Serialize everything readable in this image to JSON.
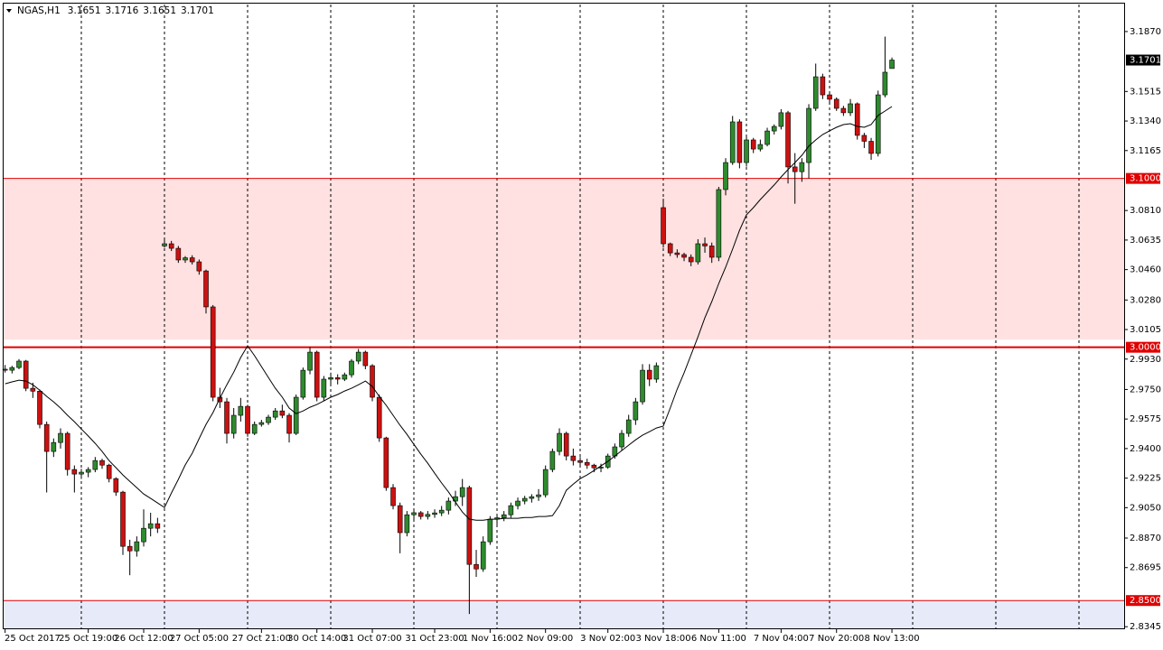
{
  "chart_data": {
    "type": "candlestick",
    "title": "NGAS,H1",
    "categories": [
      "25 Oct 2017",
      null,
      null,
      null,
      null,
      null,
      null,
      null,
      null,
      null,
      null,
      null,
      "25 Oct 19:00",
      null,
      null,
      null,
      null,
      null,
      null,
      null,
      "26 Oct 12:00",
      null,
      null,
      null,
      null,
      null,
      null,
      null,
      "27 Oct 05:00",
      null,
      null,
      null,
      null,
      null,
      null,
      null,
      null,
      "27 Oct 21:00",
      null,
      null,
      null,
      null,
      null,
      null,
      null,
      "30 Oct 14:00",
      null,
      null,
      null,
      null,
      null,
      null,
      null,
      "31 Oct 07:00",
      null,
      null,
      null,
      null,
      null,
      null,
      null,
      null,
      "31 Oct 23:00",
      null,
      null,
      null,
      null,
      null,
      null,
      null,
      "1 Nov 16:00",
      null,
      null,
      null,
      null,
      null,
      null,
      null,
      "2 Nov 09:00",
      null,
      null,
      null,
      null,
      null,
      null,
      null,
      null,
      "3 Nov 02:00",
      null,
      null,
      null,
      null,
      null,
      null,
      null,
      "3 Nov 18:00",
      null,
      null,
      null,
      null,
      null,
      null,
      null,
      "6 Nov 11:00",
      null,
      null,
      null,
      null,
      null,
      null,
      null,
      null,
      "7 Nov 04:00",
      null,
      null,
      null,
      null,
      null,
      null,
      null,
      "7 Nov 20:00",
      null,
      null,
      null,
      null,
      null,
      null,
      null,
      "8 Nov 13:00"
    ],
    "ohlc": [
      [
        2.987,
        2.9895,
        2.985,
        2.9864
      ],
      [
        2.9864,
        2.989,
        2.9845,
        2.988
      ],
      [
        2.988,
        2.993,
        2.987,
        2.9918
      ],
      [
        2.9918,
        2.9925,
        2.974,
        2.9757
      ],
      [
        2.9757,
        2.979,
        2.97,
        2.974
      ],
      [
        2.974,
        2.975,
        2.952,
        2.9543
      ],
      [
        2.9543,
        2.956,
        2.914,
        2.9383
      ],
      [
        2.9383,
        2.946,
        2.935,
        2.9436
      ],
      [
        2.9436,
        2.952,
        2.94,
        2.949
      ],
      [
        2.949,
        2.95,
        2.924,
        2.9276
      ],
      [
        2.9276,
        2.93,
        2.914,
        2.9249
      ],
      [
        2.9249,
        2.928,
        2.922,
        2.926
      ],
      [
        2.926,
        2.929,
        2.923,
        2.9276
      ],
      [
        2.9276,
        2.935,
        2.926,
        2.9329
      ],
      [
        2.9329,
        2.934,
        2.928,
        2.9302
      ],
      [
        2.9302,
        2.931,
        2.92,
        2.9222
      ],
      [
        2.9222,
        2.923,
        2.912,
        2.9142
      ],
      [
        2.9142,
        2.915,
        2.877,
        2.8821
      ],
      [
        2.8821,
        2.886,
        2.865,
        2.8794
      ],
      [
        2.8794,
        2.888,
        2.876,
        2.8848
      ],
      [
        2.8848,
        2.904,
        2.882,
        2.8928
      ],
      [
        2.8928,
        2.902,
        2.888,
        2.8955
      ],
      [
        2.8955,
        2.899,
        2.89,
        2.8928
      ],
      [
        3.06,
        3.064,
        3.059,
        3.0613
      ],
      [
        3.0613,
        3.063,
        3.057,
        3.0586
      ],
      [
        3.0586,
        3.06,
        3.05,
        3.0517
      ],
      [
        3.0517,
        3.054,
        3.05,
        3.053
      ],
      [
        3.053,
        3.0545,
        3.049,
        3.0506
      ],
      [
        3.0506,
        3.052,
        3.043,
        3.0452
      ],
      [
        3.0452,
        3.046,
        3.02,
        3.0239
      ],
      [
        3.0239,
        3.025,
        2.968,
        2.9704
      ],
      [
        2.9704,
        2.976,
        2.964,
        2.9677
      ],
      [
        2.9677,
        2.97,
        2.943,
        2.949
      ],
      [
        2.949,
        2.964,
        2.946,
        2.9597
      ],
      [
        2.9597,
        2.97,
        2.956,
        2.965
      ],
      [
        2.965,
        2.966,
        2.947,
        2.949
      ],
      [
        2.949,
        2.956,
        2.948,
        2.9543
      ],
      [
        2.9543,
        2.957,
        2.953,
        2.9554
      ],
      [
        2.9554,
        2.96,
        2.954,
        2.9586
      ],
      [
        2.9586,
        2.964,
        2.957,
        2.9623
      ],
      [
        2.9623,
        2.966,
        2.958,
        2.9597
      ],
      [
        2.9597,
        2.961,
        2.9436,
        2.949
      ],
      [
        2.949,
        2.972,
        2.948,
        2.9704
      ],
      [
        2.9704,
        2.988,
        2.969,
        2.9864
      ],
      [
        2.9864,
        3.0,
        2.984,
        2.9971
      ],
      [
        2.9971,
        2.998,
        2.968,
        2.9704
      ],
      [
        2.9704,
        2.983,
        2.968,
        2.9811
      ],
      [
        2.9811,
        2.985,
        2.978,
        2.982
      ],
      [
        2.982,
        2.984,
        2.978,
        2.9811
      ],
      [
        2.9811,
        2.985,
        2.98,
        2.9837
      ],
      [
        2.9837,
        2.993,
        2.982,
        2.9918
      ],
      [
        2.9918,
        2.999,
        2.99,
        2.9971
      ],
      [
        2.9971,
        2.998,
        2.987,
        2.9891
      ],
      [
        2.9891,
        2.99,
        2.968,
        2.9704
      ],
      [
        2.9704,
        2.972,
        2.944,
        2.9463
      ],
      [
        2.9463,
        2.947,
        2.915,
        2.9169
      ],
      [
        2.9169,
        2.919,
        2.904,
        2.9062
      ],
      [
        2.9062,
        2.908,
        2.878,
        2.8902
      ],
      [
        2.8902,
        2.903,
        2.888,
        2.9008
      ],
      [
        2.9008,
        2.904,
        2.898,
        2.902
      ],
      [
        2.902,
        2.903,
        2.898,
        2.8998
      ],
      [
        2.8998,
        2.903,
        2.898,
        2.901
      ],
      [
        2.901,
        2.904,
        2.899,
        2.9019
      ],
      [
        2.9019,
        2.906,
        2.9,
        2.9035
      ],
      [
        2.9035,
        2.911,
        2.901,
        2.9089
      ],
      [
        2.9089,
        2.915,
        2.906,
        2.9115
      ],
      [
        2.9115,
        2.922,
        2.906,
        2.9169
      ],
      [
        2.9169,
        2.918,
        2.842,
        2.8714
      ],
      [
        2.8714,
        2.88,
        2.864,
        2.8687
      ],
      [
        2.8687,
        2.888,
        2.867,
        2.8848
      ],
      [
        2.8848,
        2.9,
        2.883,
        2.8982
      ],
      [
        2.8982,
        2.9,
        2.895,
        2.899
      ],
      [
        2.899,
        2.903,
        2.897,
        2.9008
      ],
      [
        2.9008,
        2.908,
        2.899,
        2.9062
      ],
      [
        2.9062,
        2.911,
        2.904,
        2.9089
      ],
      [
        2.9089,
        2.912,
        2.907,
        2.9105
      ],
      [
        2.9105,
        2.913,
        2.908,
        2.9115
      ],
      [
        2.9115,
        2.916,
        2.909,
        2.9126
      ],
      [
        2.9126,
        2.93,
        2.911,
        2.9276
      ],
      [
        2.9276,
        2.94,
        2.926,
        2.9383
      ],
      [
        2.9383,
        2.952,
        2.936,
        2.949
      ],
      [
        2.949,
        2.95,
        2.933,
        2.9356
      ],
      [
        2.9356,
        2.94,
        2.93,
        2.9329
      ],
      [
        2.9329,
        2.935,
        2.929,
        2.9318
      ],
      [
        2.9318,
        2.934,
        2.928,
        2.9302
      ],
      [
        2.9302,
        2.931,
        2.926,
        2.9286
      ],
      [
        2.9286,
        2.931,
        2.926,
        2.929
      ],
      [
        2.929,
        2.937,
        2.928,
        2.9356
      ],
      [
        2.9356,
        2.943,
        2.934,
        2.941
      ],
      [
        2.941,
        2.951,
        2.939,
        2.949
      ],
      [
        2.949,
        2.96,
        2.947,
        2.957
      ],
      [
        2.957,
        2.97,
        2.954,
        2.9677
      ],
      [
        2.9677,
        2.99,
        2.966,
        2.9864
      ],
      [
        2.9864,
        2.99,
        2.977,
        2.9811
      ],
      [
        2.9811,
        2.991,
        2.979,
        2.9891
      ],
      [
        3.0827,
        3.088,
        3.059,
        3.0613
      ],
      [
        3.0613,
        3.062,
        3.054,
        3.0559
      ],
      [
        3.0559,
        3.058,
        3.053,
        3.0549
      ],
      [
        3.0549,
        3.056,
        3.051,
        3.0533
      ],
      [
        3.0533,
        3.055,
        3.048,
        3.0506
      ],
      [
        3.0506,
        3.064,
        3.049,
        3.0613
      ],
      [
        3.0613,
        3.065,
        3.056,
        3.06
      ],
      [
        3.06,
        3.062,
        3.05,
        3.0533
      ],
      [
        3.0533,
        3.095,
        3.051,
        3.0934
      ],
      [
        3.0934,
        3.112,
        3.09,
        3.1094
      ],
      [
        3.1094,
        3.137,
        3.108,
        3.1335
      ],
      [
        3.1335,
        3.135,
        3.106,
        3.1094
      ],
      [
        3.1094,
        3.125,
        3.107,
        3.1228
      ],
      [
        3.1228,
        3.124,
        3.115,
        3.1174
      ],
      [
        3.1174,
        3.123,
        3.116,
        3.1201
      ],
      [
        3.1201,
        3.13,
        3.119,
        3.1281
      ],
      [
        3.1281,
        3.132,
        3.126,
        3.1308
      ],
      [
        3.1308,
        3.141,
        3.129,
        3.1389
      ],
      [
        3.1389,
        3.14,
        3.097,
        3.1068
      ],
      [
        3.1068,
        3.115,
        3.085,
        3.104
      ],
      [
        3.104,
        3.112,
        3.098,
        3.1094
      ],
      [
        3.1094,
        3.144,
        3.1,
        3.1415
      ],
      [
        3.1415,
        3.168,
        3.14,
        3.1602
      ],
      [
        3.1602,
        3.162,
        3.147,
        3.1495
      ],
      [
        3.1495,
        3.151,
        3.144,
        3.1469
      ],
      [
        3.1469,
        3.148,
        3.14,
        3.1415
      ],
      [
        3.1415,
        3.143,
        3.137,
        3.1389
      ],
      [
        3.1389,
        3.147,
        3.137,
        3.1442
      ],
      [
        3.1442,
        3.145,
        3.123,
        3.1255
      ],
      [
        3.1255,
        3.127,
        3.118,
        3.122
      ],
      [
        3.122,
        3.124,
        3.111,
        3.1148
      ],
      [
        3.1148,
        3.152,
        3.113,
        3.1495
      ],
      [
        3.1495,
        3.184,
        3.148,
        3.1629
      ],
      [
        3.1651,
        3.1716,
        3.1651,
        3.1701
      ]
    ],
    "up_color": "#2e8b2e",
    "down_color": "#cc1111",
    "ma": {
      "color": "#000000",
      "values": [
        2.9784,
        2.9795,
        2.9805,
        2.98,
        2.9778,
        2.9746,
        2.9709,
        2.9677,
        2.964,
        2.9597,
        2.9559,
        2.9516,
        2.9474,
        2.9431,
        2.9383,
        2.9329,
        2.9287,
        2.9244,
        2.9206,
        2.9169,
        2.9131,
        2.9105,
        2.9078,
        2.9051,
        2.9137,
        2.9217,
        2.9303,
        2.9372,
        2.9458,
        2.9543,
        2.9613,
        2.9698,
        2.9778,
        2.9853,
        2.9939,
        3.0009,
        2.995,
        2.9886,
        2.9821,
        2.9757,
        2.9704,
        2.964,
        2.9607,
        2.9623,
        2.9645,
        2.9661,
        2.9682,
        2.9704,
        2.972,
        2.9741,
        2.9757,
        2.9778,
        2.98,
        2.9768,
        2.9709,
        2.9656,
        2.9597,
        2.9538,
        2.9484,
        2.9425,
        2.9367,
        2.9313,
        2.9254,
        2.9196,
        2.9142,
        2.9083,
        2.9024,
        2.8982,
        2.8976,
        2.8976,
        2.8982,
        2.8982,
        2.8987,
        2.8987,
        2.8987,
        2.8992,
        2.8992,
        2.8998,
        2.8998,
        2.9003,
        2.9062,
        2.9153,
        2.919,
        2.9222,
        2.9244,
        2.927,
        2.9297,
        2.9324,
        2.9356,
        2.9388,
        2.942,
        2.9452,
        2.9479,
        2.95,
        2.9522,
        2.9533,
        2.964,
        2.9752,
        2.9848,
        2.9955,
        3.0062,
        3.0174,
        3.0271,
        3.0378,
        3.0474,
        3.0581,
        3.0693,
        3.0784,
        3.0827,
        3.0875,
        3.0918,
        3.0961,
        3.1009,
        3.1052,
        3.1094,
        3.1137,
        3.1191,
        3.1228,
        3.126,
        3.1282,
        3.1303,
        3.1319,
        3.1324,
        3.1308,
        3.1303,
        3.1319,
        3.1373,
        3.1399,
        3.1426
      ]
    },
    "ylim": [
      2.833,
      3.203
    ],
    "yticks": [
      {
        "value": 3.187,
        "label": "3.1870"
      },
      3.1515,
      {
        "value": 3.134,
        "label": "3.1340"
      },
      3.1165,
      {
        "value": 3.081,
        "label": "3.0810"
      },
      3.0635,
      {
        "value": 3.046,
        "label": "3.0460"
      },
      {
        "value": 3.028,
        "label": "3.0280"
      },
      3.0105,
      {
        "value": 2.993,
        "label": "2.9930"
      },
      {
        "value": 2.975,
        "label": "2.9750"
      },
      2.9575,
      {
        "value": 2.94,
        "label": "2.9400"
      },
      2.9225,
      {
        "value": 2.905,
        "label": "2.9050"
      },
      {
        "value": 2.887,
        "label": "2.8870"
      },
      2.8695,
      2.8345
    ],
    "levels": [
      {
        "value": 3.1,
        "label": "3.1000",
        "color": "#e00000",
        "style": "thin"
      },
      {
        "value": 3.0,
        "label": "3.0000",
        "color": "#e00000",
        "style": "thick"
      },
      {
        "value": 2.85,
        "label": "2.8500",
        "color": "#e00000",
        "style": "thin"
      }
    ],
    "zones": [
      {
        "from": 3.1,
        "to": 3.0045,
        "color": "#ffe1e1"
      },
      {
        "from": 2.85,
        "to": 2.833,
        "color": "#e7eaf8"
      }
    ],
    "last_price_color": "#000000"
  }
}
